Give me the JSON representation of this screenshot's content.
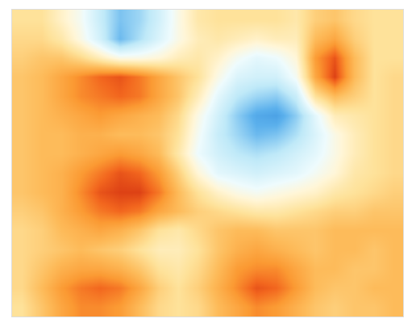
{
  "chart_data": {
    "type": "heatmap",
    "tick_labels": false,
    "zlim": [
      -1,
      1
    ],
    "cells": [
      [
        0.3,
        0.3,
        0.15,
        0.0,
        -0.25,
        -0.5,
        -0.4,
        -0.2,
        0.05,
        0.25,
        0.3,
        0.3,
        0.3,
        0.3,
        0.25,
        0.4,
        0.45,
        0.35,
        0.3,
        0.3
      ],
      [
        0.35,
        0.35,
        0.25,
        0.05,
        -0.2,
        -0.55,
        -0.35,
        -0.15,
        0.05,
        0.2,
        0.25,
        0.2,
        0.15,
        0.2,
        0.2,
        0.5,
        0.6,
        0.4,
        0.3,
        0.3
      ],
      [
        0.4,
        0.45,
        0.45,
        0.35,
        0.2,
        0.05,
        0.05,
        0.1,
        0.2,
        0.25,
        0.15,
        0.0,
        -0.1,
        -0.05,
        0.1,
        0.65,
        0.85,
        0.5,
        0.3,
        0.3
      ],
      [
        0.45,
        0.5,
        0.6,
        0.7,
        0.8,
        0.85,
        0.75,
        0.6,
        0.45,
        0.3,
        0.05,
        -0.15,
        -0.2,
        -0.2,
        0.0,
        0.6,
        0.9,
        0.5,
        0.3,
        0.35
      ],
      [
        0.45,
        0.5,
        0.6,
        0.7,
        0.75,
        0.8,
        0.75,
        0.6,
        0.45,
        0.2,
        -0.1,
        -0.3,
        -0.4,
        -0.45,
        -0.25,
        0.3,
        0.5,
        0.4,
        0.3,
        0.35
      ],
      [
        0.45,
        0.5,
        0.55,
        0.6,
        0.65,
        0.6,
        0.55,
        0.5,
        0.35,
        0.05,
        -0.2,
        -0.45,
        -0.65,
        -0.7,
        -0.45,
        -0.1,
        0.2,
        0.25,
        0.3,
        0.35
      ],
      [
        0.45,
        0.5,
        0.5,
        0.55,
        0.55,
        0.5,
        0.5,
        0.45,
        0.3,
        0.0,
        -0.25,
        -0.4,
        -0.55,
        -0.5,
        -0.35,
        -0.15,
        0.05,
        0.2,
        0.3,
        0.35
      ],
      [
        0.45,
        0.5,
        0.5,
        0.55,
        0.6,
        0.65,
        0.6,
        0.5,
        0.25,
        -0.05,
        -0.2,
        -0.3,
        -0.35,
        -0.3,
        -0.2,
        -0.1,
        0.05,
        0.2,
        0.3,
        0.35
      ],
      [
        0.45,
        0.5,
        0.55,
        0.65,
        0.75,
        0.85,
        0.8,
        0.65,
        0.4,
        0.1,
        -0.1,
        -0.15,
        -0.2,
        -0.15,
        -0.1,
        0.0,
        0.1,
        0.25,
        0.3,
        0.35
      ],
      [
        0.45,
        0.5,
        0.55,
        0.7,
        0.85,
        0.9,
        0.9,
        0.75,
        0.5,
        0.3,
        0.15,
        0.05,
        0.0,
        0.05,
        0.1,
        0.15,
        0.25,
        0.3,
        0.35,
        0.4
      ],
      [
        0.4,
        0.45,
        0.55,
        0.65,
        0.75,
        0.8,
        0.75,
        0.6,
        0.5,
        0.4,
        0.35,
        0.3,
        0.25,
        0.25,
        0.3,
        0.35,
        0.4,
        0.4,
        0.45,
        0.45
      ],
      [
        0.35,
        0.4,
        0.5,
        0.55,
        0.6,
        0.55,
        0.45,
        0.3,
        0.25,
        0.35,
        0.45,
        0.5,
        0.5,
        0.45,
        0.45,
        0.45,
        0.5,
        0.5,
        0.5,
        0.5
      ],
      [
        0.35,
        0.4,
        0.45,
        0.5,
        0.45,
        0.4,
        0.3,
        0.2,
        0.2,
        0.3,
        0.45,
        0.55,
        0.6,
        0.55,
        0.5,
        0.45,
        0.5,
        0.5,
        0.45,
        0.5
      ],
      [
        0.35,
        0.45,
        0.55,
        0.6,
        0.6,
        0.55,
        0.45,
        0.3,
        0.25,
        0.35,
        0.5,
        0.65,
        0.7,
        0.7,
        0.6,
        0.5,
        0.5,
        0.45,
        0.45,
        0.5
      ],
      [
        0.35,
        0.5,
        0.65,
        0.75,
        0.8,
        0.75,
        0.6,
        0.4,
        0.3,
        0.4,
        0.55,
        0.7,
        0.85,
        0.8,
        0.65,
        0.5,
        0.45,
        0.45,
        0.5,
        0.5
      ],
      [
        0.3,
        0.45,
        0.6,
        0.7,
        0.7,
        0.65,
        0.5,
        0.35,
        0.3,
        0.35,
        0.5,
        0.6,
        0.7,
        0.65,
        0.55,
        0.45,
        0.4,
        0.45,
        0.45,
        0.5
      ]
    ]
  }
}
